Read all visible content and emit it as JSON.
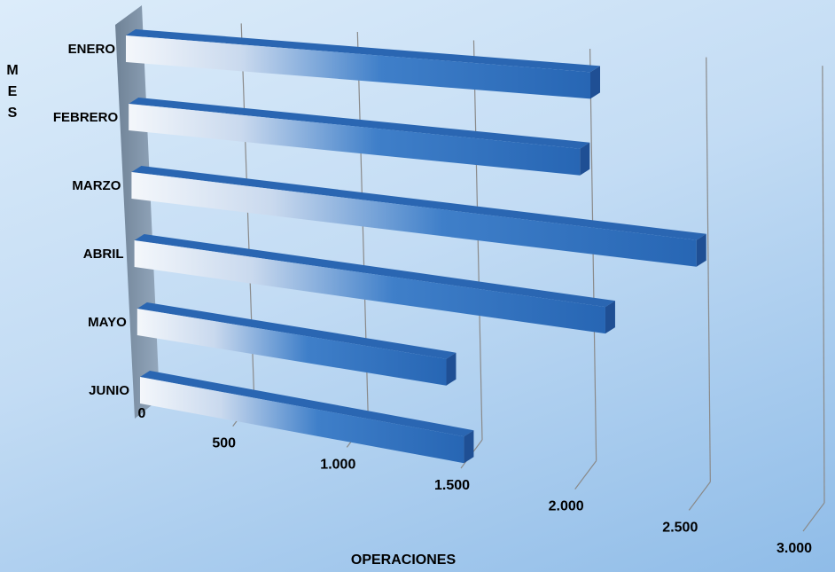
{
  "chart_data": {
    "type": "bar",
    "orientation": "horizontal",
    "categories": [
      "ENERO",
      "FEBRERO",
      "MARZO",
      "ABRIL",
      "MAYO",
      "JUNIO"
    ],
    "values": [
      2000,
      1950,
      2450,
      2050,
      1350,
      1420
    ],
    "xlabel": "OPERACIONES",
    "ylabel": "MES",
    "xlim": [
      0,
      3000
    ],
    "xticks": [
      "0",
      "500",
      "1.000",
      "1.500",
      "2.000",
      "2.500",
      "3.000"
    ],
    "grid": true,
    "legend": "none",
    "colors": {
      "bar": "#2f6fbf",
      "bar_dark": "#1f4f94",
      "bar_light": "#e8eef6",
      "wall": "#7d92a8"
    }
  }
}
